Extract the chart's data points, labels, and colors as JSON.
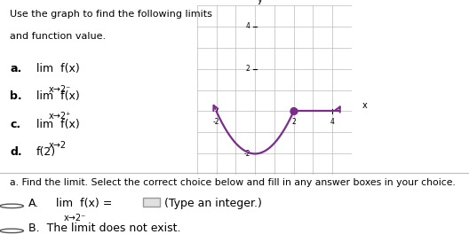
{
  "title_text1": "Use the graph to find the following limits",
  "title_text2": "and function value.",
  "items": [
    {
      "label": "a.",
      "main": "lim  f(x)",
      "sub": "x→2⁻"
    },
    {
      "label": "b.",
      "main": "lim  f(x)",
      "sub": "x→2⁺"
    },
    {
      "label": "c.",
      "main": "lim  f(x)",
      "sub": "x→2"
    },
    {
      "label": "d.",
      "main": "f(2)",
      "sub": ""
    }
  ],
  "bottom_label": "a. Find the limit. Select the correct choice below and fill in any answer boxes in your choice.",
  "graph_xlim": [
    -3,
    5
  ],
  "graph_ylim": [
    -3,
    5
  ],
  "curve_color": "#7B2D8B",
  "bg_color": "#ffffff",
  "text_color": "#000000"
}
